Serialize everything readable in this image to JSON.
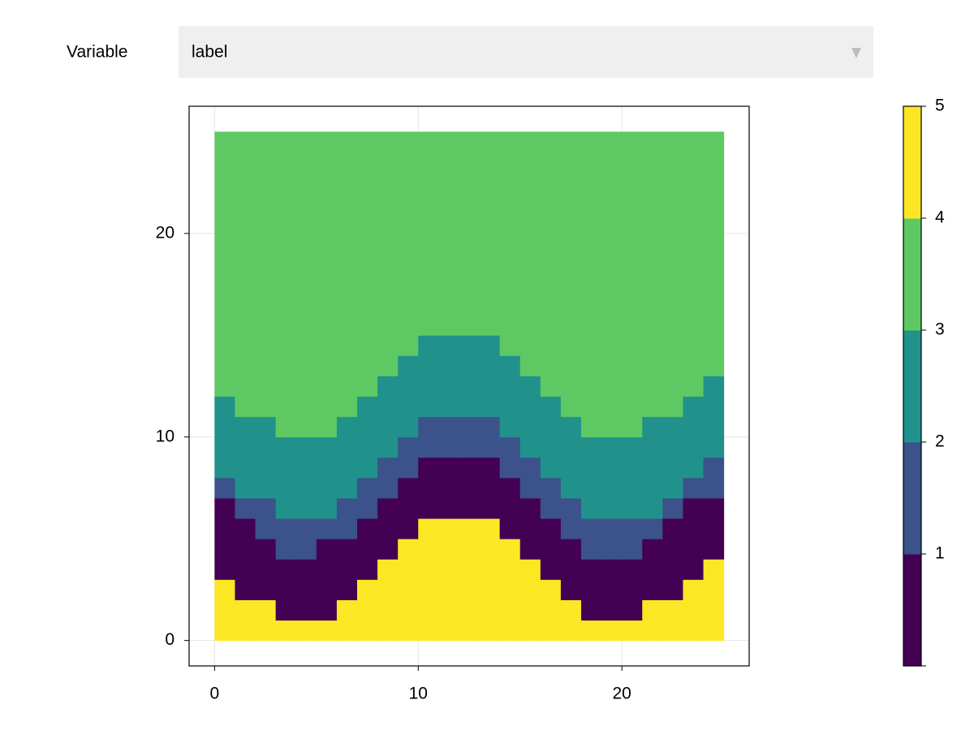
{
  "controls": {
    "dropdown_label": "Variable",
    "dropdown_value": "label"
  },
  "chart_data": {
    "type": "heatmap",
    "z": [
      [
        5,
        5,
        5,
        5,
        5,
        5,
        5,
        5,
        5,
        5,
        5,
        5,
        5,
        5,
        5,
        5,
        5,
        5,
        5,
        5,
        5,
        5,
        5,
        5,
        5
      ],
      [
        5,
        5,
        5,
        1,
        1,
        1,
        5,
        5,
        5,
        5,
        5,
        5,
        5,
        5,
        5,
        5,
        5,
        5,
        1,
        1,
        1,
        5,
        5,
        5,
        5
      ],
      [
        5,
        1,
        1,
        1,
        1,
        1,
        1,
        5,
        5,
        5,
        5,
        5,
        5,
        5,
        5,
        5,
        5,
        1,
        1,
        1,
        1,
        1,
        1,
        5,
        5
      ],
      [
        1,
        1,
        1,
        1,
        1,
        1,
        1,
        1,
        5,
        5,
        5,
        5,
        5,
        5,
        5,
        5,
        1,
        1,
        1,
        1,
        1,
        1,
        1,
        1,
        5
      ],
      [
        1,
        1,
        1,
        2,
        2,
        1,
        1,
        1,
        1,
        5,
        5,
        5,
        5,
        5,
        5,
        1,
        1,
        1,
        2,
        2,
        2,
        1,
        1,
        1,
        1
      ],
      [
        1,
        1,
        2,
        2,
        2,
        2,
        2,
        1,
        1,
        1,
        5,
        5,
        5,
        5,
        1,
        1,
        1,
        2,
        2,
        2,
        2,
        2,
        1,
        1,
        1
      ],
      [
        1,
        2,
        2,
        3,
        3,
        3,
        2,
        2,
        1,
        1,
        1,
        1,
        1,
        1,
        1,
        1,
        2,
        2,
        3,
        3,
        3,
        3,
        2,
        1,
        1
      ],
      [
        2,
        3,
        3,
        3,
        3,
        3,
        3,
        2,
        2,
        1,
        1,
        1,
        1,
        1,
        1,
        2,
        2,
        3,
        3,
        3,
        3,
        3,
        3,
        2,
        2
      ],
      [
        3,
        3,
        3,
        3,
        3,
        3,
        3,
        3,
        2,
        2,
        1,
        1,
        1,
        1,
        2,
        2,
        3,
        3,
        3,
        3,
        3,
        3,
        3,
        3,
        2
      ],
      [
        3,
        3,
        3,
        3,
        3,
        3,
        3,
        3,
        3,
        2,
        2,
        2,
        2,
        2,
        2,
        3,
        3,
        3,
        3,
        3,
        3,
        3,
        3,
        3,
        3
      ],
      [
        3,
        3,
        3,
        4,
        4,
        4,
        3,
        3,
        3,
        3,
        2,
        2,
        2,
        2,
        3,
        3,
        3,
        3,
        4,
        4,
        4,
        3,
        3,
        3,
        3
      ],
      [
        3,
        4,
        4,
        4,
        4,
        4,
        4,
        3,
        3,
        3,
        3,
        3,
        3,
        3,
        3,
        3,
        3,
        4,
        4,
        4,
        4,
        4,
        4,
        3,
        3
      ],
      [
        4,
        4,
        4,
        4,
        4,
        4,
        4,
        4,
        3,
        3,
        3,
        3,
        3,
        3,
        3,
        3,
        4,
        4,
        4,
        4,
        4,
        4,
        4,
        4,
        3
      ],
      [
        4,
        4,
        4,
        4,
        4,
        4,
        4,
        4,
        4,
        3,
        3,
        3,
        3,
        3,
        3,
        4,
        4,
        4,
        4,
        4,
        4,
        4,
        4,
        4,
        4
      ],
      [
        4,
        4,
        4,
        4,
        4,
        4,
        4,
        4,
        4,
        4,
        3,
        3,
        3,
        3,
        4,
        4,
        4,
        4,
        4,
        4,
        4,
        4,
        4,
        4,
        4
      ],
      [
        4,
        4,
        4,
        4,
        4,
        4,
        4,
        4,
        4,
        4,
        4,
        4,
        4,
        4,
        4,
        4,
        4,
        4,
        4,
        4,
        4,
        4,
        4,
        4,
        4
      ],
      [
        4,
        4,
        4,
        4,
        4,
        4,
        4,
        4,
        4,
        4,
        4,
        4,
        4,
        4,
        4,
        4,
        4,
        4,
        4,
        4,
        4,
        4,
        4,
        4,
        4
      ],
      [
        4,
        4,
        4,
        4,
        4,
        4,
        4,
        4,
        4,
        4,
        4,
        4,
        4,
        4,
        4,
        4,
        4,
        4,
        4,
        4,
        4,
        4,
        4,
        4,
        4
      ],
      [
        4,
        4,
        4,
        4,
        4,
        4,
        4,
        4,
        4,
        4,
        4,
        4,
        4,
        4,
        4,
        4,
        4,
        4,
        4,
        4,
        4,
        4,
        4,
        4,
        4
      ],
      [
        4,
        4,
        4,
        4,
        4,
        4,
        4,
        4,
        4,
        4,
        4,
        4,
        4,
        4,
        4,
        4,
        4,
        4,
        4,
        4,
        4,
        4,
        4,
        4,
        4
      ],
      [
        4,
        4,
        4,
        4,
        4,
        4,
        4,
        4,
        4,
        4,
        4,
        4,
        4,
        4,
        4,
        4,
        4,
        4,
        4,
        4,
        4,
        4,
        4,
        4,
        4
      ],
      [
        4,
        4,
        4,
        4,
        4,
        4,
        4,
        4,
        4,
        4,
        4,
        4,
        4,
        4,
        4,
        4,
        4,
        4,
        4,
        4,
        4,
        4,
        4,
        4,
        4
      ],
      [
        4,
        4,
        4,
        4,
        4,
        4,
        4,
        4,
        4,
        4,
        4,
        4,
        4,
        4,
        4,
        4,
        4,
        4,
        4,
        4,
        4,
        4,
        4,
        4,
        4
      ],
      [
        4,
        4,
        4,
        4,
        4,
        4,
        4,
        4,
        4,
        4,
        4,
        4,
        4,
        4,
        4,
        4,
        4,
        4,
        4,
        4,
        4,
        4,
        4,
        4,
        4
      ],
      [
        4,
        4,
        4,
        4,
        4,
        4,
        4,
        4,
        4,
        4,
        4,
        4,
        4,
        4,
        4,
        4,
        4,
        4,
        4,
        4,
        4,
        4,
        4,
        4,
        4
      ]
    ],
    "colormap": [
      "#440154",
      "#3b528b",
      "#21918c",
      "#5ec962",
      "#fde725"
    ],
    "clim": [
      0,
      5
    ],
    "cticks": [
      1,
      2,
      3,
      4,
      5
    ],
    "xlim": [
      -1.25,
      26.25
    ],
    "ylim": [
      -1.25,
      26.25
    ],
    "xticks": [
      0,
      10,
      20
    ],
    "yticks": [
      0,
      10,
      20
    ],
    "grid": true
  }
}
